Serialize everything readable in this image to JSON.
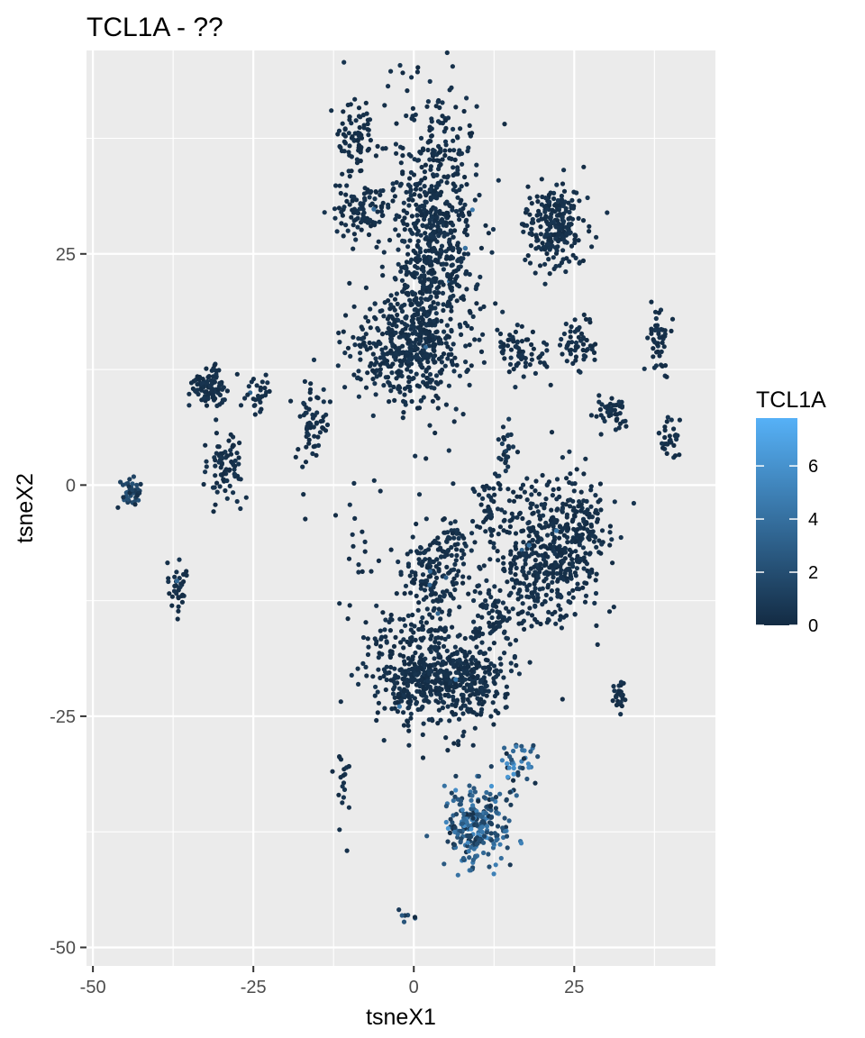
{
  "chart_data": {
    "type": "scatter",
    "title": "TCL1A - ??",
    "xlabel": "tsneX1",
    "ylabel": "tsneX2",
    "xlim": [
      -51,
      47
    ],
    "ylim": [
      -52,
      47
    ],
    "x_ticks": [
      -50,
      -25,
      0,
      25
    ],
    "x_tick_labels": [
      "-50",
      "-25",
      "0",
      "25"
    ],
    "y_ticks": [
      -50,
      -25,
      0,
      25
    ],
    "y_tick_labels": [
      "-50",
      "-25",
      "0",
      "25"
    ],
    "grid": true,
    "background": "#ebebeb",
    "grid_color": "#ffffff",
    "point_color_low": "#132b43",
    "point_color_high": "#56b1f7",
    "legend": {
      "title": "TCL1A",
      "position": "right",
      "min": 0,
      "max": 7.8,
      "ticks": [
        0,
        2,
        4,
        6
      ],
      "tick_labels": [
        "0",
        "2",
        "4",
        "6"
      ]
    },
    "clusters": [
      {
        "x": -9,
        "y": 38,
        "sx": 1.5,
        "sy": 2.2,
        "n": 70,
        "expr": 0.2
      },
      {
        "x": 3,
        "y": 27,
        "sx": 3.6,
        "sy": 8.5,
        "n": 700,
        "expr": 0.3
      },
      {
        "x": -8,
        "y": 30,
        "sx": 2.8,
        "sy": 1.6,
        "n": 100,
        "expr": 0.3
      },
      {
        "x": 1,
        "y": 16,
        "sx": 3.2,
        "sy": 3.5,
        "n": 260,
        "expr": 0.3
      },
      {
        "x": -5,
        "y": 14,
        "sx": 3.2,
        "sy": 2.2,
        "n": 140,
        "expr": 0.3
      },
      {
        "x": 22,
        "y": 28,
        "sx": 2.5,
        "sy": 2.3,
        "n": 230,
        "expr": 0.3
      },
      {
        "x": 17,
        "y": 14.5,
        "sx": 2.2,
        "sy": 1.3,
        "n": 70,
        "expr": 0.3
      },
      {
        "x": 25.5,
        "y": 15,
        "sx": 1.4,
        "sy": 1.4,
        "n": 55,
        "expr": 0.3
      },
      {
        "x": 38,
        "y": 15.5,
        "sx": 0.9,
        "sy": 1.5,
        "n": 50,
        "expr": 0.3
      },
      {
        "x": 31,
        "y": 8,
        "sx": 1.3,
        "sy": 1.0,
        "n": 45,
        "expr": 0.3
      },
      {
        "x": 40,
        "y": 5,
        "sx": 1.0,
        "sy": 1.0,
        "n": 30,
        "expr": 0.3
      },
      {
        "x": -32,
        "y": 10.5,
        "sx": 1.3,
        "sy": 1.2,
        "n": 90,
        "expr": 0.3
      },
      {
        "x": -29.5,
        "y": 2,
        "sx": 1.4,
        "sy": 1.6,
        "n": 80,
        "expr": 0.3
      },
      {
        "x": -24.5,
        "y": 10,
        "sx": 1.0,
        "sy": 1.2,
        "n": 30,
        "expr": 0.3
      },
      {
        "x": -16,
        "y": 7,
        "sx": 1.2,
        "sy": 2.2,
        "n": 60,
        "expr": 0.3
      },
      {
        "x": -44,
        "y": -1,
        "sx": 0.8,
        "sy": 0.9,
        "n": 45,
        "expr": 1.2
      },
      {
        "x": -37,
        "y": -11,
        "sx": 0.8,
        "sy": 1.3,
        "n": 35,
        "expr": 0.3
      },
      {
        "x": 3,
        "y": -10,
        "sx": 2.0,
        "sy": 2.5,
        "n": 150,
        "expr": 0.3
      },
      {
        "x": 6,
        "y": -6,
        "sx": 1.3,
        "sy": 1.3,
        "n": 40,
        "expr": 0.3
      },
      {
        "x": 11.5,
        "y": -2,
        "sx": 0.9,
        "sy": 1.5,
        "n": 35,
        "expr": 0.3
      },
      {
        "x": 14.5,
        "y": 3.5,
        "sx": 0.6,
        "sy": 2.0,
        "n": 25,
        "expr": 0.6
      },
      {
        "x": 19,
        "y": -8,
        "sx": 4.5,
        "sy": 4.2,
        "n": 420,
        "expr": 0.3
      },
      {
        "x": 25,
        "y": -4,
        "sx": 2.8,
        "sy": 2.8,
        "n": 160,
        "expr": 0.3
      },
      {
        "x": 2,
        "y": -20.5,
        "sx": 3.8,
        "sy": 2.8,
        "n": 380,
        "expr": 0.3
      },
      {
        "x": 9,
        "y": -21,
        "sx": 3.0,
        "sy": 2.0,
        "n": 200,
        "expr": 0.3
      },
      {
        "x": 12,
        "y": -14,
        "sx": 2.0,
        "sy": 1.5,
        "n": 60,
        "expr": 0.3
      },
      {
        "x": -3,
        "y": -17,
        "sx": 3.0,
        "sy": 3.5,
        "n": 60,
        "expr": 0.3
      },
      {
        "x": -8,
        "y": -7,
        "sx": 6.0,
        "sy": 5.0,
        "n": 30,
        "expr": 0.3
      },
      {
        "x": 32,
        "y": -23,
        "sx": 0.6,
        "sy": 0.9,
        "n": 25,
        "expr": 0.3
      },
      {
        "x": -11,
        "y": -32,
        "sx": 0.6,
        "sy": 2.2,
        "n": 20,
        "expr": 0.3
      },
      {
        "x": 16,
        "y": -30,
        "sx": 1.4,
        "sy": 1.2,
        "n": 40,
        "expr": 3.2
      },
      {
        "x": 10,
        "y": -37,
        "sx": 2.4,
        "sy": 2.2,
        "n": 260,
        "expr": 2.6
      },
      {
        "x": -1,
        "y": -46,
        "sx": 1.0,
        "sy": 1.0,
        "n": 7,
        "expr": 1.5
      }
    ]
  }
}
